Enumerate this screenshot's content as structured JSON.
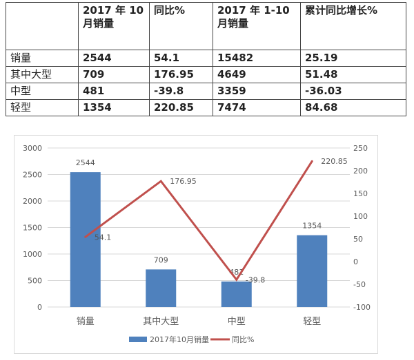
{
  "table": {
    "headers": [
      "",
      "2017 年 10 月销量",
      "同比%",
      "2017 年 1-10 月销量",
      "累计同比增长%"
    ],
    "rows": [
      [
        "销量",
        "2544",
        "54.1",
        "15482",
        "25.19"
      ],
      [
        "其中大型",
        "709",
        "176.95",
        "4649",
        "51.48"
      ],
      [
        "中型",
        "481",
        "-39.8",
        "3359",
        "-36.03"
      ],
      [
        "轻型",
        "1354",
        "220.85",
        "7474",
        "84.68"
      ]
    ]
  },
  "chart_data": {
    "type": "bar+line",
    "categories": [
      "销量",
      "其中大型",
      "中型",
      "轻型"
    ],
    "series": [
      {
        "name": "2017年10月销量",
        "type": "bar",
        "axis": "left",
        "color": "#4f81bd",
        "values": [
          2544,
          709,
          481,
          1354
        ],
        "labels": [
          "2544",
          "709",
          "481",
          "1354"
        ]
      },
      {
        "name": "同比%",
        "type": "line",
        "axis": "right",
        "color": "#c0504d",
        "values": [
          54.1,
          176.95,
          -39.8,
          220.85
        ],
        "labels": [
          "54.1",
          "176.95",
          "-39.8",
          "220.85"
        ]
      }
    ],
    "y_left": {
      "range": [
        0,
        3000
      ],
      "ticks": [
        "0",
        "500",
        "1000",
        "1500",
        "2000",
        "2500",
        "3000"
      ]
    },
    "y_right": {
      "range": [
        -100,
        250
      ],
      "ticks": [
        "-100",
        "-50",
        "0",
        "50",
        "100",
        "150",
        "200",
        "250"
      ]
    },
    "grid": true,
    "legend": "bottom"
  }
}
